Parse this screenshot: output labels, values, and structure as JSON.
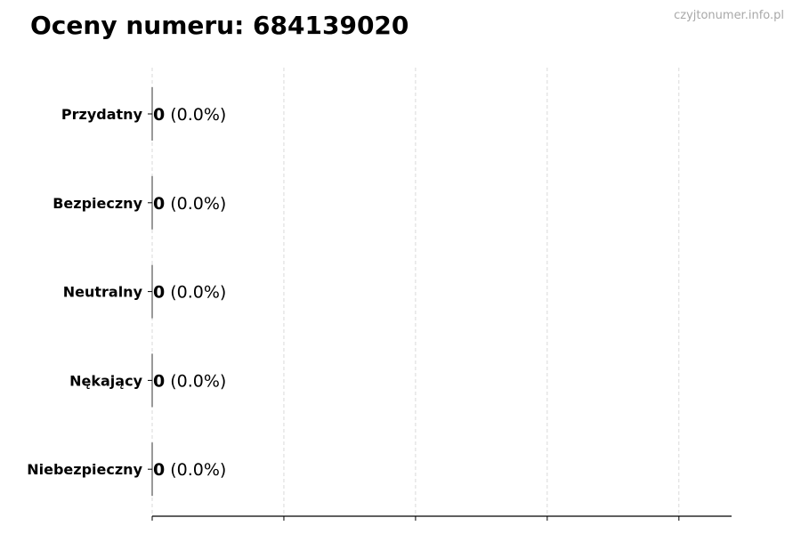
{
  "watermark": "czyjtonumer.info.pl",
  "chart_data": {
    "type": "bar",
    "orientation": "horizontal",
    "title": "Oceny numeru: 684139020",
    "categories": [
      "Przydatny",
      "Bezpieczny",
      "Neutralny",
      "Nękający",
      "Niebezpieczny"
    ],
    "values": [
      0,
      0,
      0,
      0,
      0
    ],
    "data_labels": [
      "0 (0.0%)",
      "0 (0.0%)",
      "0 (0.0%)",
      "0 (0.0%)",
      "0 (0.0%)"
    ],
    "counts": [
      "0",
      "0",
      "0",
      "0",
      "0"
    ],
    "percents": [
      "(0.0%)",
      "(0.0%)",
      "(0.0%)",
      "(0.0%)",
      "(0.0%)"
    ],
    "xlim": [
      0,
      4.4
    ],
    "xticks": [
      0,
      1,
      2,
      3,
      4
    ],
    "xtick_labels_shown": false,
    "grid": "x dashed",
    "xlabel": "",
    "ylabel": "",
    "colors": {
      "grid": "#d0d0d0",
      "axis": "#000000",
      "bar": "#333333"
    }
  }
}
